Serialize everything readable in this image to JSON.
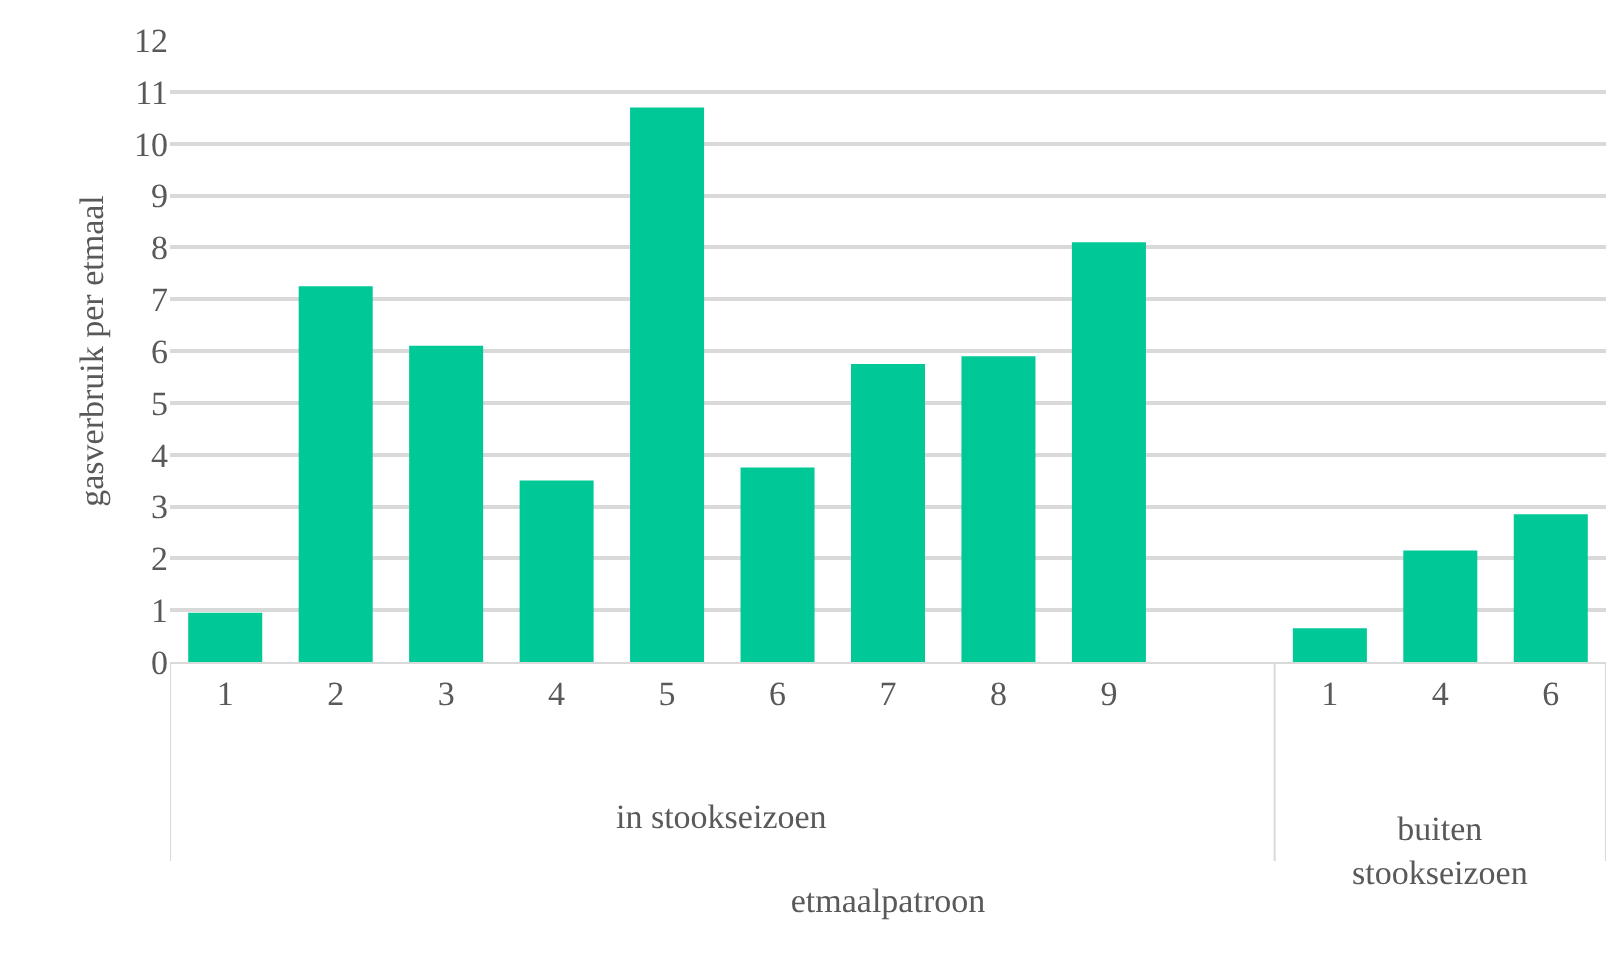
{
  "chart_data": {
    "type": "bar",
    "xlabel": "etmaalpatroon",
    "ylabel": "gasverbruik per etmaal",
    "categories": [
      "1",
      "2",
      "3",
      "4",
      "5",
      "6",
      "7",
      "8",
      "9",
      null,
      "1",
      "4",
      "6"
    ],
    "values": [
      0.95,
      7.25,
      6.1,
      3.5,
      10.7,
      3.75,
      5.75,
      5.9,
      8.1,
      null,
      0.65,
      2.15,
      2.85
    ],
    "color": "#00c896",
    "ylim": [
      0,
      12
    ],
    "yticks": [
      0,
      1,
      2,
      3,
      4,
      5,
      6,
      7,
      8,
      9,
      10,
      11,
      12
    ],
    "grid": "y",
    "legend": false,
    "annotations": [
      "in stookseizoen",
      "buiten\nstookseizoen"
    ]
  }
}
